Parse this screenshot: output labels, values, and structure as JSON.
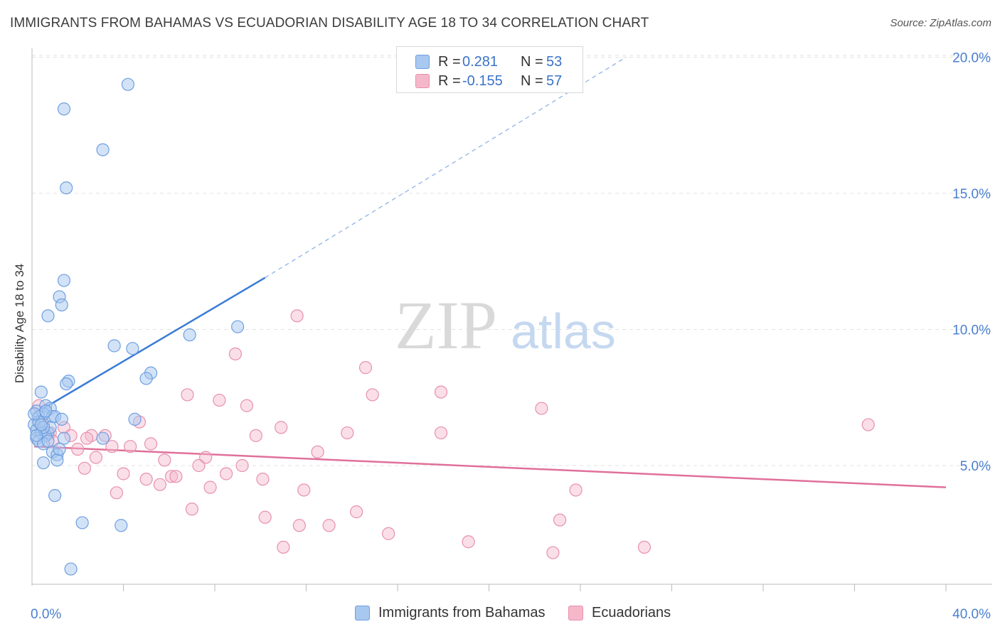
{
  "title": "IMMIGRANTS FROM BAHAMAS VS ECUADORIAN DISABILITY AGE 18 TO 34 CORRELATION CHART",
  "source": "Source: ZipAtlas.com",
  "watermark": {
    "zip": "ZIP",
    "atlas": "atlas"
  },
  "legend": {
    "series": [
      {
        "r_label": "R =",
        "r_value": "0.281",
        "n_label": "N =",
        "n_value": "53"
      },
      {
        "r_label": "R =",
        "r_value": "-0.155",
        "n_label": "N =",
        "n_value": "57"
      }
    ]
  },
  "bottom_legend": {
    "series1": "Immigrants from Bahamas",
    "series2": "Ecuadorians"
  },
  "colors": {
    "blue_fill": "#a8c8f0",
    "blue_stroke": "#6f9fe0",
    "blue_line": "#3a7bd5",
    "pink_fill": "#f5b8cb",
    "pink_stroke": "#e890ad",
    "pink_line": "#e0709a",
    "tick_text": "#4a7fcf",
    "grid": "#e2e2e2"
  },
  "chart_data": {
    "type": "scatter",
    "title": "IMMIGRANTS FROM BAHAMAS VS ECUADORIAN DISABILITY AGE 18 TO 34 CORRELATION CHART",
    "xlabel": "",
    "ylabel": "Disability Age 18 to 34",
    "xlim": [
      0,
      40
    ],
    "ylim": [
      0,
      20.5
    ],
    "x_tick_labels": [
      "0.0%",
      "40.0%"
    ],
    "y_ticks": [
      5,
      10,
      15,
      20
    ],
    "y_tick_labels": [
      "5.0%",
      "10.0%",
      "15.0%",
      "20.0%"
    ],
    "grid": true,
    "legend_position": "top-center",
    "series": [
      {
        "name": "Immigrants from Bahamas",
        "r": 0.281,
        "n": 53,
        "trend": {
          "x0": 0.1,
          "y0": 6.9,
          "x1": 10.2,
          "y1": 11.9,
          "dashed_to": {
            "x": 26,
            "y": 20
          }
        },
        "points": [
          [
            4.2,
            19.0
          ],
          [
            1.4,
            18.1
          ],
          [
            3.1,
            16.6
          ],
          [
            1.5,
            15.2
          ],
          [
            1.4,
            11.8
          ],
          [
            1.2,
            11.2
          ],
          [
            1.3,
            10.9
          ],
          [
            0.7,
            10.5
          ],
          [
            9.0,
            10.1
          ],
          [
            6.9,
            9.8
          ],
          [
            3.6,
            9.4
          ],
          [
            4.4,
            9.3
          ],
          [
            5.2,
            8.4
          ],
          [
            5.0,
            8.2
          ],
          [
            1.6,
            8.1
          ],
          [
            1.5,
            8.0
          ],
          [
            0.4,
            7.7
          ],
          [
            0.6,
            7.2
          ],
          [
            0.8,
            7.1
          ],
          [
            0.2,
            7.0
          ],
          [
            0.5,
            6.9
          ],
          [
            0.9,
            6.8
          ],
          [
            1.0,
            6.8
          ],
          [
            0.3,
            6.8
          ],
          [
            0.6,
            7.0
          ],
          [
            1.3,
            6.7
          ],
          [
            4.5,
            6.7
          ],
          [
            0.1,
            6.5
          ],
          [
            0.2,
            6.3
          ],
          [
            0.7,
            6.2
          ],
          [
            0.4,
            6.2
          ],
          [
            0.6,
            6.1
          ],
          [
            0.2,
            6.0
          ],
          [
            3.1,
            6.0
          ],
          [
            0.3,
            5.9
          ],
          [
            1.4,
            6.0
          ],
          [
            0.5,
            5.8
          ],
          [
            0.9,
            5.5
          ],
          [
            1.1,
            5.4
          ],
          [
            1.1,
            5.2
          ],
          [
            0.5,
            5.1
          ],
          [
            1.0,
            3.9
          ],
          [
            2.2,
            2.9
          ],
          [
            3.9,
            2.8
          ],
          [
            1.7,
            1.2
          ],
          [
            0.3,
            6.6
          ],
          [
            0.8,
            6.4
          ],
          [
            0.1,
            6.9
          ],
          [
            0.5,
            6.4
          ],
          [
            0.2,
            6.1
          ],
          [
            1.2,
            5.6
          ],
          [
            0.7,
            5.9
          ],
          [
            0.4,
            6.5
          ]
        ]
      },
      {
        "name": "Ecuadorians",
        "r": -0.155,
        "n": 57,
        "trend": {
          "x0": 0.1,
          "y0": 5.7,
          "x1": 40,
          "y1": 4.2
        },
        "points": [
          [
            11.6,
            10.5
          ],
          [
            8.9,
            9.1
          ],
          [
            14.6,
            8.6
          ],
          [
            17.9,
            7.7
          ],
          [
            14.9,
            7.6
          ],
          [
            6.8,
            7.6
          ],
          [
            8.2,
            7.4
          ],
          [
            9.4,
            7.2
          ],
          [
            22.3,
            7.1
          ],
          [
            0.3,
            7.2
          ],
          [
            36.6,
            6.5
          ],
          [
            4.7,
            6.6
          ],
          [
            1.4,
            6.4
          ],
          [
            10.9,
            6.4
          ],
          [
            0.5,
            6.5
          ],
          [
            13.8,
            6.2
          ],
          [
            17.9,
            6.2
          ],
          [
            9.8,
            6.1
          ],
          [
            2.6,
            6.1
          ],
          [
            3.2,
            6.1
          ],
          [
            1.7,
            6.1
          ],
          [
            0.8,
            6.2
          ],
          [
            2.4,
            6.0
          ],
          [
            0.9,
            5.9
          ],
          [
            5.2,
            5.8
          ],
          [
            3.5,
            5.7
          ],
          [
            4.3,
            5.7
          ],
          [
            2.0,
            5.6
          ],
          [
            12.5,
            5.5
          ],
          [
            7.6,
            5.3
          ],
          [
            2.8,
            5.3
          ],
          [
            5.8,
            5.2
          ],
          [
            9.2,
            5.0
          ],
          [
            7.3,
            5.0
          ],
          [
            2.3,
            4.9
          ],
          [
            4.0,
            4.7
          ],
          [
            8.5,
            4.7
          ],
          [
            6.1,
            4.6
          ],
          [
            6.3,
            4.6
          ],
          [
            5.0,
            4.5
          ],
          [
            10.1,
            4.5
          ],
          [
            5.6,
            4.3
          ],
          [
            7.8,
            4.2
          ],
          [
            11.9,
            4.1
          ],
          [
            23.8,
            4.1
          ],
          [
            3.7,
            4.0
          ],
          [
            7.0,
            3.4
          ],
          [
            14.2,
            3.3
          ],
          [
            10.2,
            3.1
          ],
          [
            23.1,
            3.0
          ],
          [
            11.7,
            2.8
          ],
          [
            13.0,
            2.8
          ],
          [
            15.6,
            2.5
          ],
          [
            19.1,
            2.2
          ],
          [
            11.0,
            2.0
          ],
          [
            26.8,
            2.0
          ],
          [
            22.8,
            1.8
          ]
        ]
      }
    ]
  }
}
